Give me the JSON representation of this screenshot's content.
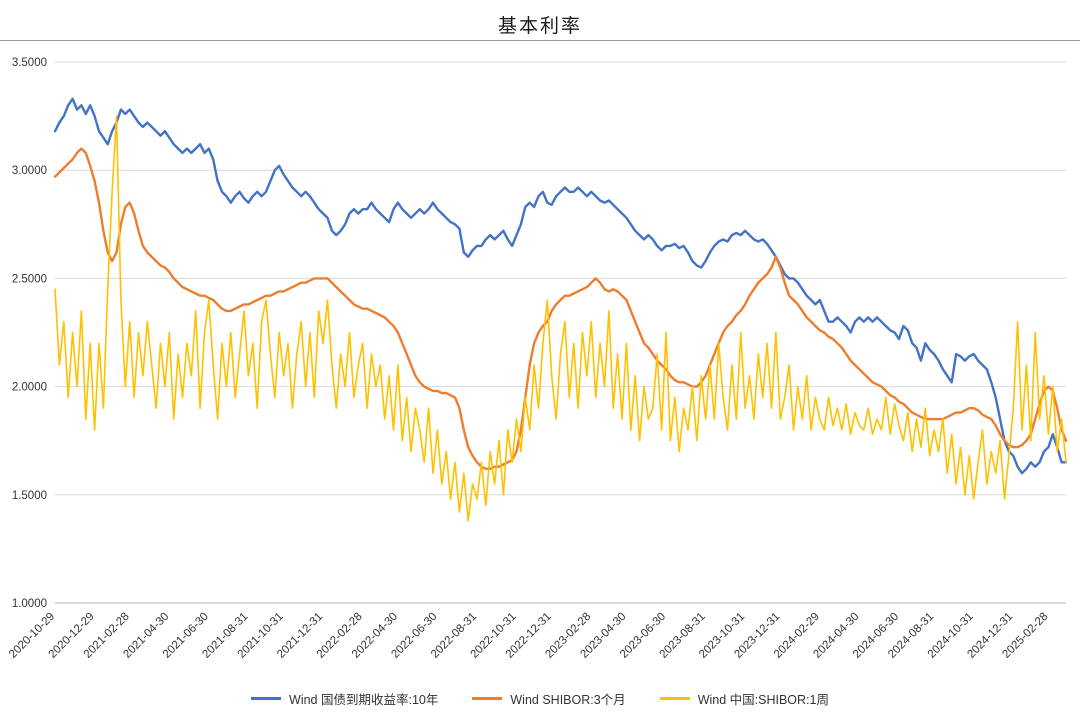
{
  "chart_data": {
    "type": "line",
    "title": "基本利率",
    "ylim": [
      1.0,
      3.5
    ],
    "y_ticks": [
      "1.0000",
      "1.5000",
      "2.0000",
      "2.5000",
      "3.0000",
      "3.5000"
    ],
    "grid": "horizontal",
    "grid_color": "#d9d9d9",
    "axis_color": "#b3b3b3",
    "legend_position": "bottom",
    "n_points": 231,
    "x_tick_labels": [
      "2020-10-29",
      "2020-12-29",
      "2021-02-28",
      "2021-04-30",
      "2021-06-30",
      "2021-08-31",
      "2021-10-31",
      "2021-12-31",
      "2022-02-28",
      "2022-04-30",
      "2022-06-30",
      "2022-08-31",
      "2022-10-31",
      "2022-12-31",
      "2023-02-28",
      "2023-04-30",
      "2023-06-30",
      "2023-08-31",
      "2023-10-31",
      "2023-12-31",
      "2024-02-29",
      "2024-04-30",
      "2024-06-30",
      "2024-08-31",
      "2024-10-31",
      "2024-12-31",
      "2025-02-28"
    ],
    "x_tick_indices": [
      0,
      9,
      17,
      26,
      35,
      44,
      52,
      61,
      70,
      78,
      87,
      96,
      105,
      113,
      122,
      130,
      139,
      148,
      157,
      165,
      174,
      183,
      192,
      200,
      209,
      218,
      226
    ],
    "series": [
      {
        "id": "bond-10y",
        "name": "Wind 国债到期收益率:10年",
        "color": "#4472C4",
        "width": 2.4,
        "values": [
          3.18,
          3.22,
          3.25,
          3.3,
          3.33,
          3.28,
          3.3,
          3.26,
          3.3,
          3.25,
          3.18,
          3.15,
          3.12,
          3.18,
          3.22,
          3.28,
          3.26,
          3.28,
          3.25,
          3.22,
          3.2,
          3.22,
          3.2,
          3.18,
          3.16,
          3.18,
          3.15,
          3.12,
          3.1,
          3.08,
          3.1,
          3.08,
          3.1,
          3.12,
          3.08,
          3.1,
          3.05,
          2.95,
          2.9,
          2.88,
          2.85,
          2.88,
          2.9,
          2.87,
          2.85,
          2.88,
          2.9,
          2.88,
          2.9,
          2.95,
          3.0,
          3.02,
          2.98,
          2.95,
          2.92,
          2.9,
          2.88,
          2.9,
          2.88,
          2.85,
          2.82,
          2.8,
          2.78,
          2.72,
          2.7,
          2.72,
          2.75,
          2.8,
          2.82,
          2.8,
          2.82,
          2.82,
          2.85,
          2.82,
          2.8,
          2.78,
          2.76,
          2.82,
          2.85,
          2.82,
          2.8,
          2.78,
          2.8,
          2.82,
          2.8,
          2.82,
          2.85,
          2.82,
          2.8,
          2.78,
          2.76,
          2.75,
          2.73,
          2.62,
          2.6,
          2.63,
          2.65,
          2.65,
          2.68,
          2.7,
          2.68,
          2.7,
          2.72,
          2.68,
          2.65,
          2.7,
          2.75,
          2.83,
          2.85,
          2.83,
          2.88,
          2.9,
          2.85,
          2.84,
          2.88,
          2.9,
          2.92,
          2.9,
          2.9,
          2.92,
          2.9,
          2.88,
          2.9,
          2.88,
          2.86,
          2.85,
          2.86,
          2.84,
          2.82,
          2.8,
          2.78,
          2.75,
          2.72,
          2.7,
          2.68,
          2.7,
          2.68,
          2.65,
          2.63,
          2.65,
          2.65,
          2.66,
          2.64,
          2.65,
          2.62,
          2.58,
          2.56,
          2.55,
          2.58,
          2.62,
          2.65,
          2.67,
          2.68,
          2.67,
          2.7,
          2.71,
          2.7,
          2.72,
          2.7,
          2.68,
          2.67,
          2.68,
          2.66,
          2.63,
          2.6,
          2.56,
          2.52,
          2.5,
          2.5,
          2.48,
          2.45,
          2.42,
          2.4,
          2.38,
          2.4,
          2.35,
          2.3,
          2.3,
          2.32,
          2.3,
          2.28,
          2.25,
          2.3,
          2.32,
          2.3,
          2.32,
          2.3,
          2.32,
          2.3,
          2.28,
          2.26,
          2.25,
          2.22,
          2.28,
          2.26,
          2.2,
          2.18,
          2.12,
          2.2,
          2.17,
          2.15,
          2.12,
          2.08,
          2.05,
          2.02,
          2.15,
          2.14,
          2.12,
          2.14,
          2.15,
          2.12,
          2.1,
          2.08,
          2.02,
          1.95,
          1.85,
          1.75,
          1.7,
          1.68,
          1.63,
          1.6,
          1.62,
          1.65,
          1.63,
          1.65,
          1.7,
          1.72,
          1.78,
          1.72,
          1.65,
          1.65
        ]
      },
      {
        "id": "shibor-3m",
        "name": "Wind SHIBOR:3个月",
        "color": "#ED7D31",
        "width": 2.4,
        "values": [
          2.97,
          2.99,
          3.01,
          3.03,
          3.05,
          3.08,
          3.1,
          3.08,
          3.02,
          2.95,
          2.85,
          2.72,
          2.62,
          2.58,
          2.62,
          2.75,
          2.83,
          2.85,
          2.8,
          2.72,
          2.65,
          2.62,
          2.6,
          2.58,
          2.56,
          2.55,
          2.53,
          2.5,
          2.48,
          2.46,
          2.45,
          2.44,
          2.43,
          2.42,
          2.42,
          2.41,
          2.4,
          2.38,
          2.36,
          2.35,
          2.35,
          2.36,
          2.37,
          2.38,
          2.38,
          2.39,
          2.4,
          2.41,
          2.42,
          2.42,
          2.43,
          2.44,
          2.44,
          2.45,
          2.46,
          2.47,
          2.48,
          2.48,
          2.49,
          2.5,
          2.5,
          2.5,
          2.5,
          2.48,
          2.46,
          2.44,
          2.42,
          2.4,
          2.38,
          2.37,
          2.36,
          2.36,
          2.35,
          2.34,
          2.33,
          2.32,
          2.3,
          2.28,
          2.25,
          2.2,
          2.15,
          2.1,
          2.05,
          2.02,
          2.0,
          1.99,
          1.98,
          1.98,
          1.97,
          1.97,
          1.96,
          1.95,
          1.9,
          1.8,
          1.72,
          1.68,
          1.65,
          1.63,
          1.62,
          1.62,
          1.63,
          1.63,
          1.64,
          1.65,
          1.66,
          1.7,
          1.8,
          1.95,
          2.1,
          2.2,
          2.25,
          2.28,
          2.3,
          2.35,
          2.38,
          2.4,
          2.42,
          2.42,
          2.43,
          2.44,
          2.45,
          2.46,
          2.48,
          2.5,
          2.48,
          2.45,
          2.44,
          2.45,
          2.44,
          2.42,
          2.4,
          2.35,
          2.3,
          2.25,
          2.2,
          2.18,
          2.15,
          2.12,
          2.1,
          2.08,
          2.05,
          2.03,
          2.02,
          2.02,
          2.01,
          2.0,
          2.0,
          2.02,
          2.05,
          2.1,
          2.15,
          2.2,
          2.25,
          2.28,
          2.3,
          2.33,
          2.35,
          2.38,
          2.42,
          2.45,
          2.48,
          2.5,
          2.52,
          2.55,
          2.6,
          2.55,
          2.48,
          2.42,
          2.4,
          2.38,
          2.35,
          2.32,
          2.3,
          2.28,
          2.26,
          2.25,
          2.23,
          2.22,
          2.2,
          2.18,
          2.15,
          2.12,
          2.1,
          2.08,
          2.06,
          2.04,
          2.02,
          2.01,
          2.0,
          1.98,
          1.96,
          1.95,
          1.93,
          1.92,
          1.9,
          1.88,
          1.87,
          1.86,
          1.85,
          1.85,
          1.85,
          1.85,
          1.85,
          1.86,
          1.87,
          1.88,
          1.88,
          1.89,
          1.9,
          1.9,
          1.89,
          1.87,
          1.86,
          1.85,
          1.82,
          1.78,
          1.75,
          1.73,
          1.72,
          1.72,
          1.73,
          1.75,
          1.78,
          1.85,
          1.92,
          1.98,
          2.0,
          1.98,
          1.9,
          1.8,
          1.75
        ]
      },
      {
        "id": "shibor-1w",
        "name": "Wind 中国:SHIBOR:1周",
        "color": "#FFC000",
        "width": 1.6,
        "values": [
          2.45,
          2.1,
          2.3,
          1.95,
          2.25,
          2.0,
          2.35,
          1.85,
          2.2,
          1.8,
          2.2,
          1.9,
          2.45,
          2.9,
          3.25,
          2.4,
          2.0,
          2.3,
          1.95,
          2.25,
          2.05,
          2.3,
          2.1,
          1.9,
          2.2,
          2.0,
          2.25,
          1.85,
          2.15,
          1.95,
          2.2,
          2.05,
          2.35,
          1.9,
          2.25,
          2.4,
          2.1,
          1.85,
          2.2,
          2.0,
          2.25,
          1.95,
          2.15,
          2.35,
          2.05,
          2.2,
          1.9,
          2.3,
          2.4,
          2.15,
          1.95,
          2.25,
          2.05,
          2.2,
          1.9,
          2.15,
          2.3,
          2.0,
          2.25,
          1.95,
          2.35,
          2.2,
          2.4,
          2.1,
          1.9,
          2.15,
          2.0,
          2.25,
          1.95,
          2.1,
          2.2,
          1.9,
          2.15,
          2.0,
          2.1,
          1.85,
          2.05,
          1.8,
          2.1,
          1.75,
          1.95,
          1.7,
          1.9,
          1.8,
          1.65,
          1.9,
          1.6,
          1.8,
          1.55,
          1.7,
          1.48,
          1.65,
          1.42,
          1.6,
          1.38,
          1.55,
          1.48,
          1.65,
          1.45,
          1.7,
          1.55,
          1.75,
          1.5,
          1.8,
          1.65,
          1.85,
          1.7,
          1.95,
          1.8,
          2.1,
          1.9,
          2.2,
          2.4,
          2.05,
          1.85,
          2.15,
          2.3,
          1.95,
          2.2,
          1.9,
          2.25,
          2.05,
          2.3,
          1.95,
          2.2,
          2.0,
          2.35,
          1.9,
          2.15,
          1.85,
          2.2,
          1.8,
          2.05,
          1.75,
          2.0,
          1.85,
          1.9,
          2.15,
          1.8,
          2.25,
          1.75,
          1.95,
          1.7,
          1.9,
          1.8,
          2.0,
          1.75,
          2.05,
          1.85,
          2.1,
          1.85,
          2.2,
          1.95,
          1.8,
          2.1,
          1.85,
          2.25,
          1.9,
          2.05,
          1.85,
          2.15,
          1.95,
          2.2,
          1.9,
          2.25,
          1.85,
          1.95,
          2.1,
          1.8,
          2.0,
          1.85,
          2.05,
          1.8,
          1.95,
          1.85,
          1.8,
          1.95,
          1.82,
          1.9,
          1.8,
          1.92,
          1.78,
          1.88,
          1.82,
          1.8,
          1.9,
          1.78,
          1.85,
          1.8,
          1.95,
          1.78,
          1.92,
          1.82,
          1.75,
          1.88,
          1.7,
          1.85,
          1.72,
          1.9,
          1.68,
          1.8,
          1.7,
          1.85,
          1.6,
          1.78,
          1.55,
          1.72,
          1.5,
          1.68,
          1.48,
          1.65,
          1.8,
          1.55,
          1.7,
          1.6,
          1.75,
          1.48,
          1.68,
          1.9,
          2.3,
          1.8,
          2.1,
          1.75,
          2.25,
          1.85,
          2.05,
          1.78,
          2.0,
          1.7,
          1.85,
          1.65
        ]
      }
    ]
  }
}
